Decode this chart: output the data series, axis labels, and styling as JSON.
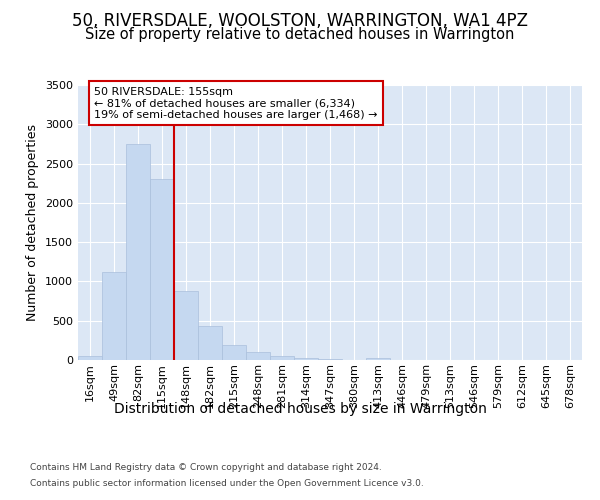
{
  "title": "50, RIVERSDALE, WOOLSTON, WARRINGTON, WA1 4PZ",
  "subtitle": "Size of property relative to detached houses in Warrington",
  "xlabel": "Distribution of detached houses by size in Warrington",
  "ylabel": "Number of detached properties",
  "categories": [
    "16sqm",
    "49sqm",
    "82sqm",
    "115sqm",
    "148sqm",
    "182sqm",
    "215sqm",
    "248sqm",
    "281sqm",
    "314sqm",
    "347sqm",
    "380sqm",
    "413sqm",
    "446sqm",
    "479sqm",
    "513sqm",
    "546sqm",
    "579sqm",
    "612sqm",
    "645sqm",
    "678sqm"
  ],
  "values": [
    50,
    1120,
    2750,
    2300,
    880,
    430,
    185,
    100,
    55,
    30,
    10,
    5,
    30,
    5,
    4,
    3,
    2,
    1,
    1,
    1,
    1
  ],
  "bar_color": "#c5d8f0",
  "bar_edge_color": "#aabfdc",
  "vline_color": "#cc0000",
  "vline_bin": 4,
  "annotation_line1": "50 RIVERSDALE: 155sqm",
  "annotation_line2": "← 81% of detached houses are smaller (6,334)",
  "annotation_line3": "19% of semi-detached houses are larger (1,468) →",
  "annotation_box_color": "#ffffff",
  "annotation_box_edge_color": "#cc0000",
  "ylim": [
    0,
    3500
  ],
  "yticks": [
    0,
    500,
    1000,
    1500,
    2000,
    2500,
    3000,
    3500
  ],
  "footer1": "Contains HM Land Registry data © Crown copyright and database right 2024.",
  "footer2": "Contains public sector information licensed under the Open Government Licence v3.0.",
  "bg_color": "#dce7f5",
  "title_fontsize": 12,
  "subtitle_fontsize": 10.5,
  "tick_fontsize": 8,
  "ylabel_fontsize": 9,
  "xlabel_fontsize": 10,
  "footer_fontsize": 6.5
}
